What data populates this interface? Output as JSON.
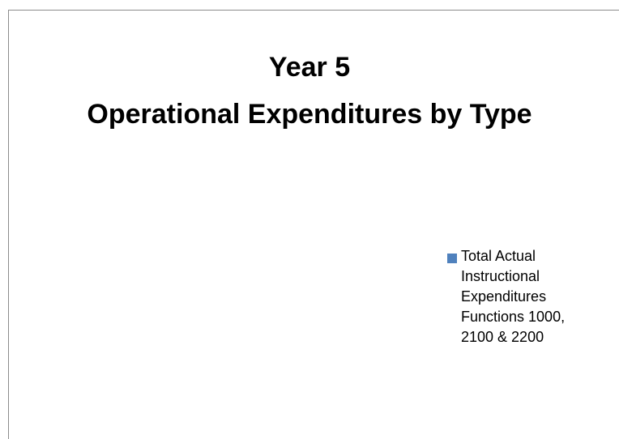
{
  "chart_data": {
    "type": "pie",
    "title": "Year 5\nOperational Expenditures by Type",
    "categories": [],
    "series": [
      {
        "name": "Total Actual Instructional Expenditures Functions 1000, 2100 & 2200",
        "color": "#4f81bd",
        "values": []
      }
    ],
    "legend": "right"
  }
}
